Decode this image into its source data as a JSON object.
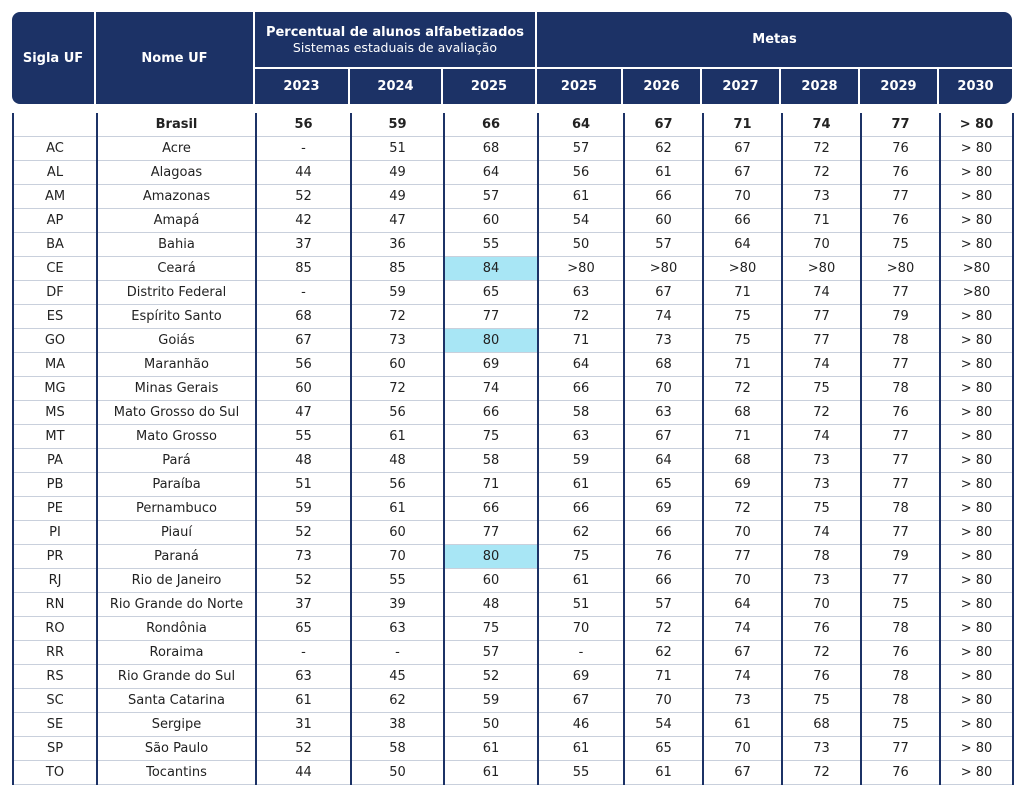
{
  "header": {
    "col1": "Sigla UF",
    "col2": "Nome UF",
    "group1": {
      "title": "Percentual de alunos alfabetizados",
      "subtitle": "Sistemas estaduais de avaliação",
      "years": [
        2023,
        2024,
        2025
      ]
    },
    "group2": {
      "title": "Metas",
      "years": [
        2025,
        2026,
        2027,
        2028,
        2029,
        2030
      ]
    }
  },
  "table": {
    "rows": [
      [
        null,
        "Brasil",
        56,
        59,
        66,
        64,
        67,
        71,
        74,
        77,
        "> 80"
      ],
      [
        "AC",
        "Acre",
        "-",
        51,
        68,
        57,
        62,
        67,
        72,
        76,
        "> 80"
      ],
      [
        "AL",
        "Alagoas",
        44,
        49,
        64,
        56,
        61,
        67,
        72,
        76,
        "> 80"
      ],
      [
        "AM",
        "Amazonas",
        52,
        49,
        57,
        61,
        66,
        70,
        73,
        77,
        "> 80"
      ],
      [
        "AP",
        "Amapá",
        42,
        47,
        60,
        54,
        60,
        66,
        71,
        76,
        "> 80"
      ],
      [
        "BA",
        "Bahia",
        37,
        36,
        55,
        50,
        57,
        64,
        70,
        75,
        "> 80"
      ],
      [
        "CE",
        "Ceará",
        85,
        85,
        84,
        ">80",
        ">80",
        ">80",
        ">80",
        ">80",
        ">80"
      ],
      [
        "DF",
        "Distrito Federal",
        "-",
        59,
        65,
        63,
        67,
        71,
        74,
        77,
        ">80"
      ],
      [
        "ES",
        "Espírito Santo",
        68,
        72,
        77,
        72,
        74,
        75,
        77,
        79,
        "> 80"
      ],
      [
        "GO",
        "Goiás",
        67,
        73,
        80,
        71,
        73,
        75,
        77,
        78,
        "> 80"
      ],
      [
        "MA",
        "Maranhão",
        56,
        60,
        69,
        64,
        68,
        71,
        74,
        77,
        "> 80"
      ],
      [
        "MG",
        "Minas Gerais",
        60,
        72,
        74,
        66,
        70,
        72,
        75,
        78,
        "> 80"
      ],
      [
        "MS",
        "Mato Grosso do Sul",
        47,
        56,
        66,
        58,
        63,
        68,
        72,
        76,
        "> 80"
      ],
      [
        "MT",
        "Mato Grosso",
        55,
        61,
        75,
        63,
        67,
        71,
        74,
        77,
        "> 80"
      ],
      [
        "PA",
        "Pará",
        48,
        48,
        58,
        59,
        64,
        68,
        73,
        77,
        "> 80"
      ],
      [
        "PB",
        "Paraíba",
        51,
        56,
        71,
        61,
        65,
        69,
        73,
        77,
        "> 80"
      ],
      [
        "PE",
        "Pernambuco",
        59,
        61,
        66,
        66,
        69,
        72,
        75,
        78,
        "> 80"
      ],
      [
        "PI",
        "Piauí",
        52,
        60,
        77,
        62,
        66,
        70,
        74,
        77,
        "> 80"
      ],
      [
        "PR",
        "Paraná",
        73,
        70,
        80,
        75,
        76,
        77,
        78,
        79,
        "> 80"
      ],
      [
        "RJ",
        "Rio de Janeiro",
        52,
        55,
        60,
        61,
        66,
        70,
        73,
        77,
        "> 80"
      ],
      [
        "RN",
        "Rio Grande do Norte",
        37,
        39,
        48,
        51,
        57,
        64,
        70,
        75,
        "> 80"
      ],
      [
        "RO",
        "Rondônia",
        65,
        63,
        75,
        70,
        72,
        74,
        76,
        78,
        "> 80"
      ],
      [
        "RR",
        "Roraima",
        "-",
        "-",
        57,
        "-",
        62,
        67,
        72,
        76,
        "> 80"
      ],
      [
        "RS",
        "Rio Grande do Sul",
        63,
        45,
        52,
        69,
        71,
        74,
        76,
        78,
        "> 80"
      ],
      [
        "SC",
        "Santa Catarina",
        61,
        62,
        59,
        67,
        70,
        73,
        75,
        78,
        "> 80"
      ],
      [
        "SE",
        "Sergipe",
        31,
        38,
        50,
        46,
        54,
        61,
        68,
        75,
        "> 80"
      ],
      [
        "SP",
        "São Paulo",
        52,
        58,
        61,
        61,
        65,
        70,
        73,
        77,
        "> 80"
      ],
      [
        "TO",
        "Tocantins",
        44,
        50,
        61,
        55,
        61,
        67,
        72,
        76,
        "> 80"
      ]
    ]
  },
  "highlighted_cells": [
    [
      6,
      4
    ],
    [
      9,
      4
    ],
    [
      18,
      4
    ]
  ],
  "highlight_color": "#a8e6f5"
}
